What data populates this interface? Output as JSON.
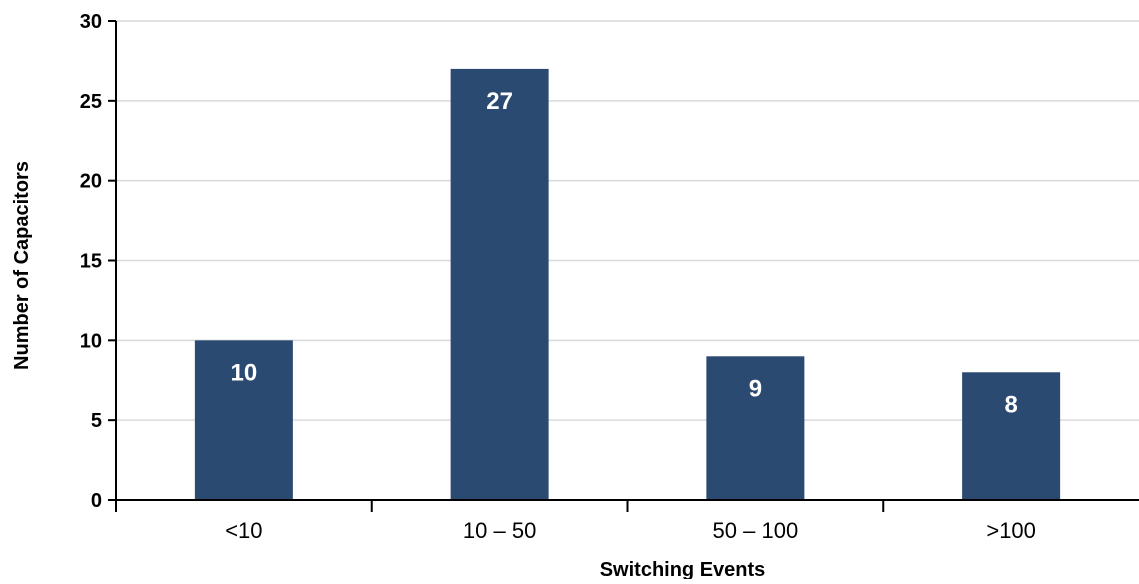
{
  "chart_data": {
    "type": "bar",
    "categories": [
      "<10",
      "10 – 50",
      "50 – 100",
      ">100"
    ],
    "values": [
      10,
      27,
      9,
      8
    ],
    "data_labels": [
      "10",
      "27",
      "9",
      "8"
    ],
    "title": "",
    "xlabel": "Switching Events",
    "ylabel": "Number of Capacitors",
    "ylim": [
      0,
      30
    ],
    "yticks": [
      0,
      5,
      10,
      15,
      20,
      25,
      30
    ],
    "ytick_labels": [
      "0",
      "5",
      "10",
      "15",
      "20",
      "25",
      "30"
    ],
    "grid": true,
    "legend": "none",
    "colors": {
      "bar": "#2b4a72",
      "grid": "#d9d9d9",
      "axis": "#000000"
    }
  }
}
